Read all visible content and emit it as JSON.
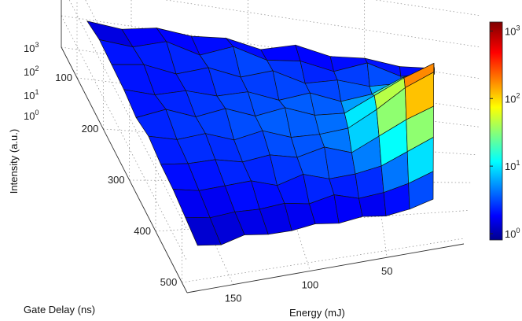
{
  "chart_data": {
    "type": "surface",
    "title": "",
    "xlabel": "Energy (mJ)",
    "ylabel": "Gate Delay (ns)",
    "zlabel": "Intensity (a.u.)",
    "z_scale": "log",
    "zlim": [
      1,
      1000
    ],
    "grid": true,
    "colormap": "jet",
    "colorbar": {
      "placement": "right",
      "range": [
        1,
        1000
      ],
      "ticks": [
        "10^0",
        "10^1",
        "10^2",
        "10^3"
      ]
    },
    "x_ticks": [
      50,
      100,
      150
    ],
    "y_ticks": [
      100,
      200,
      300,
      400,
      500
    ],
    "z_ticks": [
      "10^0",
      "10^1",
      "10^2",
      "10^3"
    ],
    "energy_values": [
      20,
      35,
      50,
      65,
      80,
      95,
      110,
      125,
      140,
      155,
      170
    ],
    "gate_delay_values": [
      50,
      100,
      150,
      200,
      250,
      300,
      350,
      400,
      450,
      500
    ],
    "z_log10": [
      [
        1.2,
        1.1,
        1.2,
        1.1,
        1.3,
        1.0,
        1.2,
        1.1,
        1.2,
        1.0,
        1.1
      ],
      [
        1.5,
        1.3,
        1.6,
        1.2,
        1.4,
        1.3,
        1.6,
        1.2,
        1.5,
        1.2,
        1.3
      ],
      [
        2.2,
        1.6,
        1.4,
        1.5,
        1.3,
        1.6,
        1.3,
        1.5,
        1.2,
        1.4,
        1.3
      ],
      [
        2.7,
        2.3,
        1.7,
        1.4,
        1.6,
        1.3,
        1.5,
        1.3,
        1.4,
        1.2,
        1.3
      ],
      [
        3.3,
        2.8,
        2.2,
        1.6,
        1.5,
        1.7,
        1.4,
        1.6,
        1.3,
        1.5,
        1.2
      ],
      [
        3.5,
        3.0,
        2.3,
        1.7,
        1.5,
        1.4,
        1.6,
        1.3,
        1.5,
        1.3,
        1.4
      ],
      [
        2.9,
        2.5,
        2.0,
        1.5,
        1.7,
        1.4,
        1.5,
        1.3,
        1.4,
        1.3,
        1.3
      ],
      [
        2.4,
        2.0,
        1.6,
        1.4,
        1.3,
        1.5,
        1.2,
        1.4,
        1.3,
        1.2,
        1.3
      ],
      [
        1.8,
        1.5,
        1.3,
        1.2,
        1.4,
        1.2,
        1.3,
        1.2,
        1.2,
        1.1,
        1.2
      ],
      [
        1.4,
        1.2,
        1.1,
        1.2,
        1.1,
        1.2,
        1.1,
        1.1,
        1.2,
        1.0,
        1.1
      ]
    ]
  }
}
